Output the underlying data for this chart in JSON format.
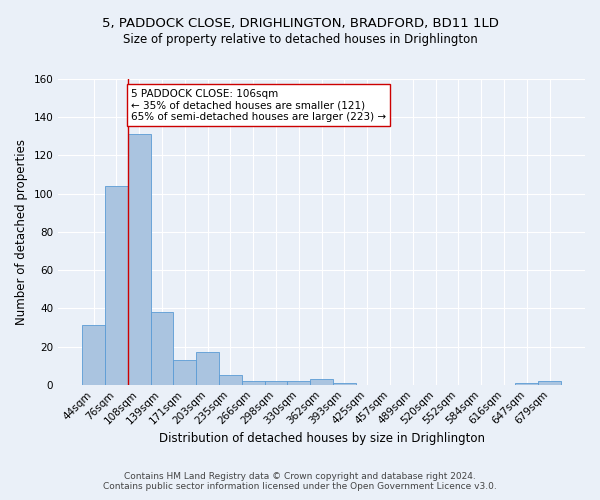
{
  "title_line1": "5, PADDOCK CLOSE, DRIGHLINGTON, BRADFORD, BD11 1LD",
  "title_line2": "Size of property relative to detached houses in Drighlington",
  "xlabel": "Distribution of detached houses by size in Drighlington",
  "ylabel": "Number of detached properties",
  "bar_labels": [
    "44sqm",
    "76sqm",
    "108sqm",
    "139sqm",
    "171sqm",
    "203sqm",
    "235sqm",
    "266sqm",
    "298sqm",
    "330sqm",
    "362sqm",
    "393sqm",
    "425sqm",
    "457sqm",
    "489sqm",
    "520sqm",
    "552sqm",
    "584sqm",
    "616sqm",
    "647sqm",
    "679sqm"
  ],
  "bar_values": [
    31,
    104,
    131,
    38,
    13,
    17,
    5,
    2,
    2,
    2,
    3,
    1,
    0,
    0,
    0,
    0,
    0,
    0,
    0,
    1,
    2
  ],
  "bar_color": "#aac4e0",
  "bar_edge_color": "#5b9bd5",
  "highlight_index": 2,
  "highlight_line_color": "#cc0000",
  "ylim": [
    0,
    160
  ],
  "yticks": [
    0,
    20,
    40,
    60,
    80,
    100,
    120,
    140,
    160
  ],
  "annotation_text": "5 PADDOCK CLOSE: 106sqm\n← 35% of detached houses are smaller (121)\n65% of semi-detached houses are larger (223) →",
  "annotation_box_color": "#ffffff",
  "annotation_box_edge": "#cc0000",
  "footer_line1": "Contains HM Land Registry data © Crown copyright and database right 2024.",
  "footer_line2": "Contains public sector information licensed under the Open Government Licence v3.0.",
  "bg_color": "#eaf0f8",
  "plot_bg_color": "#eaf0f8",
  "grid_color": "#ffffff",
  "title_fontsize": 9.5,
  "subtitle_fontsize": 8.5,
  "axis_label_fontsize": 8.5,
  "tick_fontsize": 7.5,
  "annotation_fontsize": 7.5,
  "footer_fontsize": 6.5
}
